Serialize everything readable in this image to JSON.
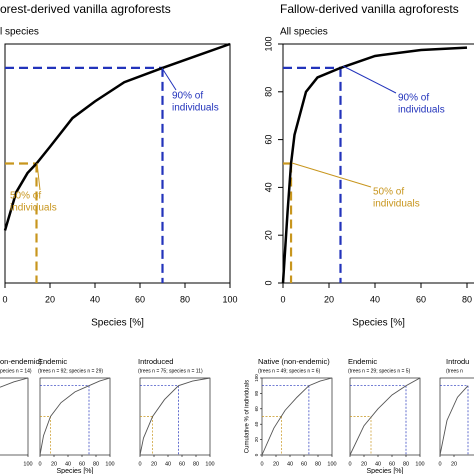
{
  "chart_data": [
    {
      "type": "line",
      "title": "orest-derived vanilla agroforests",
      "subtitle": "l species",
      "xlabel": "Species [%]",
      "x": [
        0,
        5,
        10,
        14,
        20,
        30,
        40,
        53,
        70,
        85,
        100
      ],
      "values": [
        22,
        38,
        46,
        50,
        57,
        69,
        76,
        84,
        90,
        95,
        100
      ],
      "xlim": [
        0,
        100
      ],
      "ylim": [
        0,
        100
      ],
      "xticks": [
        0,
        20,
        40,
        60,
        80,
        100
      ],
      "color": "#000000",
      "reference_lines": [
        {
          "value": 90,
          "x": 70,
          "color": "#2233bb"
        },
        {
          "value": 50,
          "x": 14,
          "color": "#c8961e"
        }
      ],
      "annotations": [
        {
          "lines": [
            "90% of",
            "individuals"
          ],
          "color": "#2233bb"
        },
        {
          "lines": [
            "50% of",
            "individuals"
          ],
          "color": "#c8961e"
        }
      ]
    },
    {
      "type": "line",
      "title": "Fallow-derived vanilla agroforests",
      "subtitle": "All species",
      "xlabel": "Species [%]",
      "x": [
        0,
        2,
        3.5,
        5,
        10,
        15,
        25,
        40,
        60,
        80
      ],
      "values": [
        0,
        30,
        50,
        62,
        80,
        86,
        90,
        95,
        97.5,
        98.5
      ],
      "xlim": [
        0,
        100
      ],
      "ylim": [
        0,
        100
      ],
      "xticks": [
        0,
        20,
        40,
        60,
        80
      ],
      "yticks": [
        0,
        20,
        40,
        60,
        80,
        100
      ],
      "color": "#000000",
      "reference_lines": [
        {
          "value": 90,
          "x": 25,
          "color": "#2233bb"
        },
        {
          "value": 50,
          "x": 3.5,
          "color": "#c8961e"
        }
      ],
      "annotations": [
        {
          "lines": [
            "90% of",
            "individuals"
          ],
          "color": "#2233bb"
        },
        {
          "lines": [
            "50% of",
            "individuals"
          ],
          "color": "#c8961e"
        }
      ]
    },
    {
      "type": "line",
      "title": "on-endemic)",
      "subtitle": "pecies n = 14)",
      "x": [
        60,
        80,
        100
      ],
      "values": [
        88,
        95,
        100
      ],
      "xlim": [
        0,
        100
      ],
      "ylim": [
        0,
        100
      ],
      "xticks": [
        50,
        100
      ],
      "color": "#555555"
    },
    {
      "type": "line",
      "title": "Endemic",
      "subtitle": "(trees n = 92; species n = 29)",
      "xlabel": "Species [%]",
      "x": [
        0,
        5,
        15,
        30,
        50,
        70,
        85,
        100
      ],
      "values": [
        0,
        25,
        50,
        68,
        82,
        90,
        96,
        100
      ],
      "xlim": [
        0,
        100
      ],
      "ylim": [
        0,
        100
      ],
      "xticks": [
        0,
        20,
        40,
        60,
        80,
        100
      ],
      "color": "#555555",
      "reference_lines": [
        {
          "value": 90,
          "x": 70,
          "color": "#2233bb"
        },
        {
          "value": 50,
          "x": 15,
          "color": "#c8961e"
        }
      ]
    },
    {
      "type": "line",
      "title": "Introduced",
      "subtitle": "(trees n = 75; species n = 11)",
      "x": [
        0,
        5,
        18,
        35,
        55,
        75,
        100
      ],
      "values": [
        0,
        22,
        50,
        72,
        90,
        96,
        100
      ],
      "xlim": [
        0,
        100
      ],
      "ylim": [
        0,
        100
      ],
      "xticks": [
        0,
        20,
        40,
        60,
        80,
        100
      ],
      "color": "#555555",
      "reference_lines": [
        {
          "value": 90,
          "x": 55,
          "color": "#2233bb"
        },
        {
          "value": 50,
          "x": 18,
          "color": "#c8961e"
        }
      ]
    },
    {
      "type": "line",
      "title": "Native (non-endemic)",
      "subtitle": "(trees n = 49; species n = 6)",
      "ylabel": "Cumulative % of individuals",
      "x": [
        0,
        17,
        33,
        50,
        67,
        83,
        100
      ],
      "values": [
        0,
        35,
        58,
        75,
        90,
        96,
        100
      ],
      "xlim": [
        0,
        100
      ],
      "ylim": [
        0,
        100
      ],
      "xticks": [
        0,
        20,
        40,
        60,
        80,
        100
      ],
      "yticks": [
        0,
        20,
        40,
        60,
        80,
        100
      ],
      "color": "#555555",
      "reference_lines": [
        {
          "value": 90,
          "x": 67,
          "color": "#2233bb"
        },
        {
          "value": 50,
          "x": 28,
          "color": "#c8961e"
        }
      ]
    },
    {
      "type": "line",
      "title": "Endemic",
      "subtitle": "(trees n = 29; species n = 5)",
      "xlabel": "Species [%]",
      "x": [
        0,
        20,
        40,
        60,
        80,
        100
      ],
      "values": [
        0,
        38,
        60,
        78,
        90,
        100
      ],
      "xlim": [
        0,
        100
      ],
      "ylim": [
        0,
        100
      ],
      "xticks": [
        0,
        20,
        40,
        60,
        80,
        100
      ],
      "color": "#555555",
      "reference_lines": [
        {
          "value": 90,
          "x": 80,
          "color": "#2233bb"
        },
        {
          "value": 50,
          "x": 30,
          "color": "#c8961e"
        }
      ]
    },
    {
      "type": "line",
      "title": "Introdu",
      "subtitle": "(trees n",
      "x": [
        0,
        10,
        25,
        40
      ],
      "values": [
        0,
        45,
        75,
        90
      ],
      "xlim": [
        0,
        100
      ],
      "ylim": [
        0,
        100
      ],
      "xticks": [
        0,
        20
      ],
      "color": "#555555",
      "reference_lines": [
        {
          "value": 90,
          "x": 40,
          "color": "#2233bb"
        }
      ]
    }
  ]
}
